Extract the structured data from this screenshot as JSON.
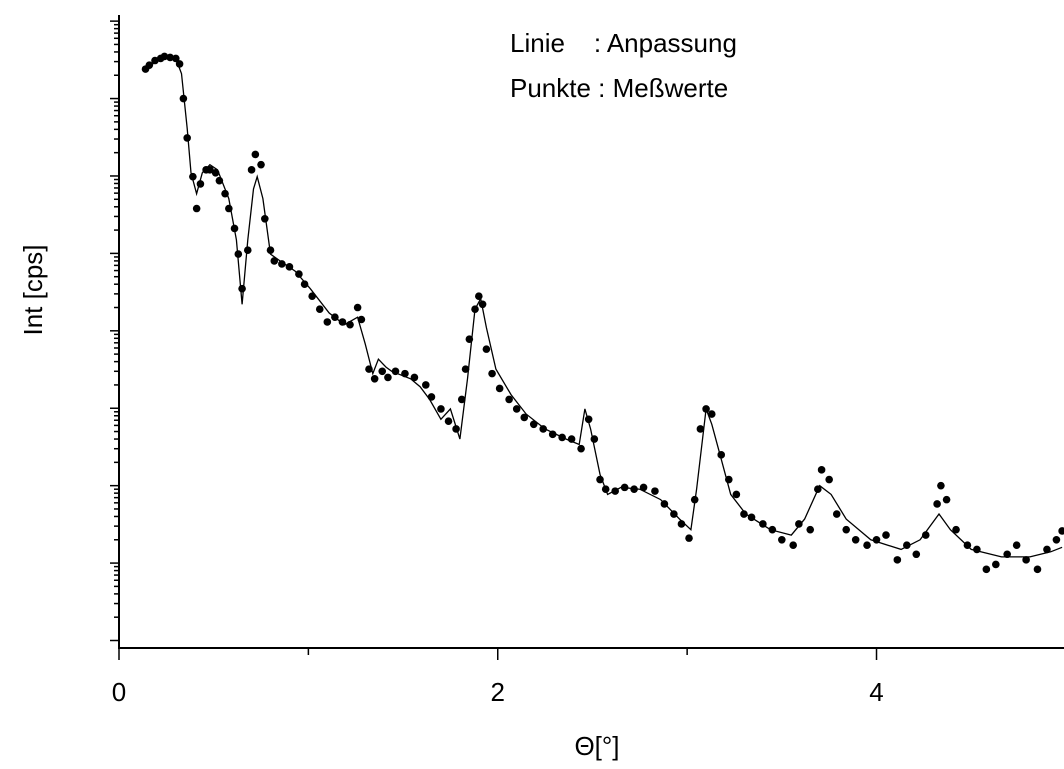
{
  "chart_data": {
    "type": "scatter",
    "xlabel": "Θ[°]",
    "ylabel": "Int [cps]",
    "annotations": [
      "Linie    : Anpassung",
      "Punkte : Meßwerte"
    ],
    "xlim": [
      0,
      4.99
    ],
    "xticks": [
      0,
      2,
      4
    ],
    "ylim": [
      0.8,
      120000000
    ],
    "yticks": [
      1,
      10,
      100,
      1000,
      10000,
      100000,
      1000000,
      10000000,
      100000000
    ],
    "ytick_labels": false,
    "log_y": true,
    "grid": false,
    "series": [
      {
        "kind": "line",
        "color": "#000000",
        "x": [
          0.14,
          0.22,
          0.3,
          0.33,
          0.36,
          0.38,
          0.41,
          0.44,
          0.48,
          0.52,
          0.58,
          0.62,
          0.65,
          0.68,
          0.71,
          0.73,
          0.76,
          0.8,
          0.85,
          0.93,
          1.01,
          1.11,
          1.19,
          1.26,
          1.3,
          1.34,
          1.37,
          1.41,
          1.44,
          1.54,
          1.59,
          1.64,
          1.7,
          1.75,
          1.8,
          1.84,
          1.88,
          1.91,
          1.94,
          1.99,
          2.07,
          2.15,
          2.25,
          2.36,
          2.43,
          2.46,
          2.49,
          2.54,
          2.58,
          2.65,
          2.75,
          2.86,
          2.96,
          3.02,
          3.05,
          3.1,
          3.13,
          3.18,
          3.23,
          3.31,
          3.44,
          3.55,
          3.62,
          3.7,
          3.76,
          3.84,
          3.97,
          4.13,
          4.23,
          4.33,
          4.39,
          4.5,
          4.66,
          4.81,
          4.92,
          4.98
        ],
        "values": [
          24000000,
          33000000,
          33000000,
          21000000,
          4100000,
          1100000,
          590000,
          1100000,
          1400000,
          1200000,
          510000,
          150000,
          22000,
          150000,
          680000,
          980000,
          510000,
          98000,
          80000,
          59000,
          35000,
          17000,
          12000,
          15000,
          6800,
          2800,
          4300,
          3400,
          3000,
          2400,
          1900,
          1300,
          720,
          980,
          400,
          2400,
          19000,
          26000,
          11000,
          3200,
          1500,
          840,
          540,
          400,
          340,
          980,
          540,
          140,
          77,
          95,
          90,
          66,
          37,
          27,
          90,
          980,
          620,
          220,
          77,
          43,
          27,
          23,
          37,
          100,
          77,
          37,
          20,
          15,
          20,
          43,
          27,
          15,
          12,
          12,
          14,
          16
        ]
      },
      {
        "kind": "points",
        "color": "#000000",
        "x": [
          0.14,
          0.16,
          0.19,
          0.22,
          0.24,
          0.27,
          0.3,
          0.32,
          0.34,
          0.36,
          0.39,
          0.41,
          0.43,
          0.46,
          0.48,
          0.51,
          0.53,
          0.56,
          0.58,
          0.61,
          0.63,
          0.65,
          0.68,
          0.7,
          0.72,
          0.75,
          0.77,
          0.8,
          0.82,
          0.86,
          0.9,
          0.95,
          0.98,
          1.02,
          1.06,
          1.1,
          1.14,
          1.18,
          1.22,
          1.26,
          1.28,
          1.32,
          1.35,
          1.39,
          1.42,
          1.46,
          1.51,
          1.56,
          1.62,
          1.65,
          1.7,
          1.74,
          1.78,
          1.81,
          1.83,
          1.85,
          1.88,
          1.9,
          1.92,
          1.94,
          1.97,
          2.01,
          2.06,
          2.1,
          2.14,
          2.19,
          2.24,
          2.29,
          2.34,
          2.39,
          2.44,
          2.48,
          2.51,
          2.54,
          2.57,
          2.62,
          2.67,
          2.72,
          2.77,
          2.83,
          2.88,
          2.93,
          2.97,
          3.01,
          3.04,
          3.07,
          3.1,
          3.13,
          3.18,
          3.22,
          3.26,
          3.3,
          3.34,
          3.4,
          3.45,
          3.5,
          3.56,
          3.59,
          3.65,
          3.69,
          3.71,
          3.75,
          3.79,
          3.84,
          3.89,
          3.95,
          4.0,
          4.05,
          4.11,
          4.16,
          4.21,
          4.26,
          4.32,
          4.34,
          4.37,
          4.42,
          4.48,
          4.53,
          4.58,
          4.63,
          4.69,
          4.74,
          4.79,
          4.85,
          4.9,
          4.95,
          4.98
        ],
        "values": [
          24000000,
          27000000,
          31000000,
          33000000,
          35000000,
          34000000,
          33000000,
          28000000,
          10000000,
          3100000,
          980000,
          380000,
          790000,
          1200000,
          1200000,
          1100000,
          870000,
          590000,
          380000,
          210000,
          98000,
          35000,
          110000,
          1200000,
          1900000,
          1400000,
          280000,
          110000,
          80000,
          73000,
          67000,
          54000,
          40000,
          28000,
          19000,
          13000,
          15000,
          13000,
          12000,
          20000,
          14000,
          3200,
          2400,
          3000,
          2500,
          3000,
          2800,
          2500,
          2000,
          1400,
          980,
          680,
          540,
          1300,
          3200,
          7800,
          19000,
          28000,
          22000,
          5800,
          2800,
          1800,
          1300,
          980,
          760,
          620,
          540,
          460,
          420,
          400,
          300,
          720,
          400,
          120,
          90,
          85,
          95,
          90,
          95,
          85,
          58,
          43,
          32,
          21,
          66,
          540,
          980,
          840,
          250,
          120,
          77,
          43,
          39,
          32,
          27,
          20,
          17,
          32,
          27,
          90,
          160,
          120,
          43,
          27,
          20,
          17,
          20,
          23,
          11,
          17,
          13,
          23,
          58,
          100,
          66,
          27,
          17,
          15,
          8.3,
          9.6,
          13,
          17,
          11,
          8.3,
          15,
          20,
          26
        ]
      }
    ]
  }
}
